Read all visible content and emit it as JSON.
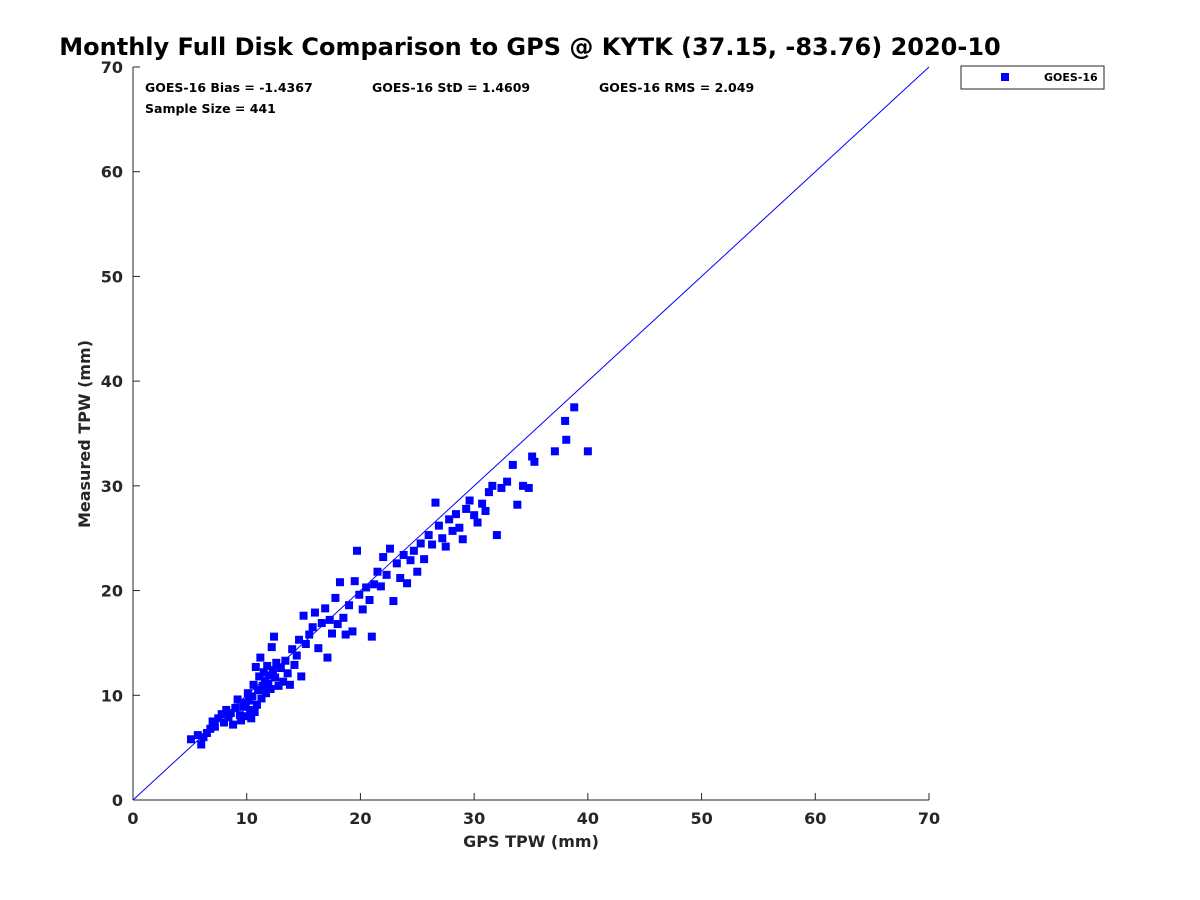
{
  "chart_data": {
    "type": "scatter",
    "title": "Monthly Full Disk Comparison to GPS @ KYTK (37.15, -83.76) 2020-10",
    "xlabel": "GPS TPW (mm)",
    "ylabel": "Measured TPW (mm)",
    "xlim": [
      0,
      70
    ],
    "ylim": [
      0,
      70
    ],
    "xticks": [
      "0",
      "10",
      "20",
      "30",
      "40",
      "50",
      "60",
      "70"
    ],
    "yticks": [
      "0",
      "10",
      "20",
      "30",
      "40",
      "50",
      "60",
      "70"
    ],
    "grid": false,
    "legend_position": "outside-top-right",
    "reference_line": {
      "x": [
        0,
        70
      ],
      "y": [
        0,
        70
      ],
      "color": "#0000ff"
    },
    "stats": {
      "bias": "GOES-16 Bias = -1.4367",
      "std": "GOES-16 StD = 1.4609",
      "rms": "GOES-16 RMS = 2.049",
      "sample_size": "Sample Size = 441"
    },
    "series": [
      {
        "name": "GOES-16",
        "color": "#0000ff",
        "marker": "square",
        "points": [
          [
            5.1,
            5.8
          ],
          [
            5.7,
            6.2
          ],
          [
            6.0,
            5.3
          ],
          [
            6.2,
            6.0
          ],
          [
            6.5,
            6.4
          ],
          [
            6.8,
            6.8
          ],
          [
            7.0,
            7.5
          ],
          [
            7.2,
            7.0
          ],
          [
            7.5,
            7.8
          ],
          [
            7.8,
            8.2
          ],
          [
            8.0,
            7.4
          ],
          [
            8.2,
            8.6
          ],
          [
            8.4,
            7.9
          ],
          [
            8.6,
            8.3
          ],
          [
            8.8,
            7.2
          ],
          [
            9.0,
            8.8
          ],
          [
            9.2,
            9.6
          ],
          [
            9.4,
            8.1
          ],
          [
            9.5,
            7.6
          ],
          [
            9.7,
            8.9
          ],
          [
            9.9,
            9.3
          ],
          [
            10.0,
            8.0
          ],
          [
            10.1,
            10.2
          ],
          [
            10.2,
            9.5
          ],
          [
            10.3,
            8.6
          ],
          [
            10.4,
            7.8
          ],
          [
            10.5,
            9.9
          ],
          [
            10.6,
            11.0
          ],
          [
            10.7,
            8.4
          ],
          [
            10.8,
            12.7
          ],
          [
            10.9,
            9.1
          ],
          [
            11.0,
            10.5
          ],
          [
            11.1,
            11.8
          ],
          [
            11.2,
            13.6
          ],
          [
            11.3,
            9.7
          ],
          [
            11.4,
            10.9
          ],
          [
            11.5,
            12.2
          ],
          [
            11.6,
            11.4
          ],
          [
            11.7,
            10.2
          ],
          [
            11.8,
            12.8
          ],
          [
            11.9,
            11.1
          ],
          [
            12.0,
            11.9
          ],
          [
            12.1,
            10.6
          ],
          [
            12.2,
            14.6
          ],
          [
            12.3,
            12.4
          ],
          [
            12.4,
            15.6
          ],
          [
            12.5,
            11.7
          ],
          [
            12.6,
            13.1
          ],
          [
            12.8,
            10.9
          ],
          [
            13.0,
            12.6
          ],
          [
            13.2,
            11.3
          ],
          [
            13.4,
            13.3
          ],
          [
            13.6,
            12.1
          ],
          [
            13.8,
            11.0
          ],
          [
            14.0,
            14.4
          ],
          [
            14.2,
            12.9
          ],
          [
            14.4,
            13.8
          ],
          [
            14.6,
            15.3
          ],
          [
            14.8,
            11.8
          ],
          [
            15.0,
            17.6
          ],
          [
            15.2,
            14.9
          ],
          [
            15.5,
            15.8
          ],
          [
            15.8,
            16.5
          ],
          [
            16.0,
            17.9
          ],
          [
            16.3,
            14.5
          ],
          [
            16.6,
            16.9
          ],
          [
            16.9,
            18.3
          ],
          [
            17.1,
            13.6
          ],
          [
            17.3,
            17.2
          ],
          [
            17.5,
            15.9
          ],
          [
            17.8,
            19.3
          ],
          [
            18.0,
            16.8
          ],
          [
            18.2,
            20.8
          ],
          [
            18.5,
            17.4
          ],
          [
            18.7,
            15.8
          ],
          [
            19.0,
            18.6
          ],
          [
            19.3,
            16.1
          ],
          [
            19.5,
            20.9
          ],
          [
            19.7,
            23.8
          ],
          [
            19.9,
            19.6
          ],
          [
            20.2,
            18.2
          ],
          [
            20.5,
            20.3
          ],
          [
            20.8,
            19.1
          ],
          [
            21.0,
            15.6
          ],
          [
            21.2,
            20.6
          ],
          [
            21.5,
            21.8
          ],
          [
            21.8,
            20.4
          ],
          [
            22.0,
            23.2
          ],
          [
            22.3,
            21.5
          ],
          [
            22.6,
            24.0
          ],
          [
            22.9,
            19.0
          ],
          [
            23.2,
            22.6
          ],
          [
            23.5,
            21.2
          ],
          [
            23.8,
            23.4
          ],
          [
            24.1,
            20.7
          ],
          [
            24.4,
            22.9
          ],
          [
            24.7,
            23.8
          ],
          [
            25.0,
            21.8
          ],
          [
            25.3,
            24.5
          ],
          [
            25.6,
            23.0
          ],
          [
            26.0,
            25.3
          ],
          [
            26.3,
            24.4
          ],
          [
            26.6,
            28.4
          ],
          [
            26.9,
            26.2
          ],
          [
            27.2,
            25.0
          ],
          [
            27.5,
            24.2
          ],
          [
            27.8,
            26.8
          ],
          [
            28.1,
            25.7
          ],
          [
            28.4,
            27.3
          ],
          [
            28.7,
            26.0
          ],
          [
            29.0,
            24.9
          ],
          [
            29.3,
            27.8
          ],
          [
            29.6,
            28.6
          ],
          [
            30.0,
            27.2
          ],
          [
            30.3,
            26.5
          ],
          [
            30.7,
            28.3
          ],
          [
            31.0,
            27.6
          ],
          [
            31.3,
            29.4
          ],
          [
            31.6,
            30.0
          ],
          [
            32.0,
            25.3
          ],
          [
            32.4,
            29.8
          ],
          [
            32.9,
            30.4
          ],
          [
            33.4,
            32.0
          ],
          [
            33.8,
            28.2
          ],
          [
            34.3,
            30.0
          ],
          [
            34.8,
            29.8
          ],
          [
            35.1,
            32.8
          ],
          [
            35.3,
            32.3
          ],
          [
            37.1,
            33.3
          ],
          [
            38.0,
            36.2
          ],
          [
            38.1,
            34.4
          ],
          [
            38.8,
            37.5
          ],
          [
            40.0,
            33.3
          ]
        ]
      }
    ]
  }
}
